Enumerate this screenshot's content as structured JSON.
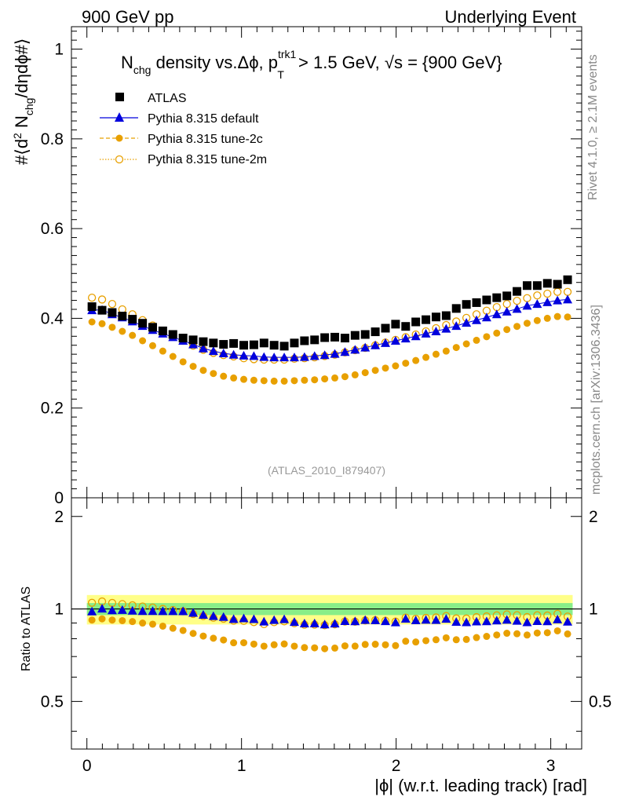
{
  "header": {
    "left": "900 GeV pp",
    "right": "Underlying Event"
  },
  "side_labels": {
    "rivet": "Rivet 4.1.0, ≥ 2.1M events",
    "mcplots": "mcplots.cern.ch [arXiv:1306.3436]"
  },
  "chart_data": {
    "type": "scatter",
    "title": "N_chg density vs. Δφ, p_T^trk1 > 1.5 GeV, √s = {900 GeV}",
    "title_parts": {
      "n": "N",
      "chg": "chg",
      "mid": " density vs.Δϕ, p",
      "sup": "trk1",
      "sub": "T",
      "rest": " > 1.5 GeV, ",
      "sqrt": "√s",
      "tail": " = {900 GeV}"
    },
    "analysis_id": "(ATLAS_2010_I879407)",
    "xlabel": "|ϕ| (w.r.t. leading track) [rad]",
    "ylabel": "#⟨d² N_chg/dηdϕ#⟩",
    "ylabel_parts": {
      "pre": "#⟨d",
      "sup": "2",
      "n": " N",
      "sub": "chg",
      "post": "/dηdϕ#⟩"
    },
    "ratio_ylabel": "Ratio to ATLAS",
    "xlim": [
      -0.1,
      3.2
    ],
    "ylim": [
      0,
      1.05
    ],
    "ratio_ylim": [
      0.35,
      2.3
    ],
    "x_ticks": [
      "0",
      "1",
      "2",
      "3"
    ],
    "y_ticks": [
      "0",
      "0.2",
      "0.4",
      "0.6",
      "0.8",
      "1"
    ],
    "ratio_ticks": [
      "0.5",
      "1",
      "2"
    ],
    "ratio_ticks_right": [
      "0.5",
      "1",
      "2"
    ],
    "legend_position": "top-left",
    "x": [
      0.0327,
      0.0982,
      0.1636,
      0.2291,
      0.2945,
      0.36,
      0.4254,
      0.4909,
      0.5563,
      0.6218,
      0.6872,
      0.7527,
      0.8181,
      0.8836,
      0.949,
      1.0145,
      1.0799,
      1.1454,
      1.2108,
      1.2763,
      1.3417,
      1.4072,
      1.4726,
      1.5381,
      1.6035,
      1.669,
      1.7344,
      1.7999,
      1.8653,
      1.9308,
      1.9962,
      2.0617,
      2.1271,
      2.1926,
      2.258,
      2.3235,
      2.3889,
      2.4544,
      2.5198,
      2.5853,
      2.6507,
      2.7162,
      2.7816,
      2.8471,
      2.9125,
      2.978,
      3.0434,
      3.1089
    ],
    "series": [
      {
        "name": "ATLAS",
        "color": "#000000",
        "marker": "square",
        "values": [
          0.426,
          0.418,
          0.413,
          0.405,
          0.398,
          0.389,
          0.38,
          0.372,
          0.364,
          0.356,
          0.352,
          0.348,
          0.345,
          0.342,
          0.344,
          0.34,
          0.341,
          0.345,
          0.34,
          0.338,
          0.345,
          0.35,
          0.352,
          0.357,
          0.358,
          0.356,
          0.362,
          0.364,
          0.37,
          0.378,
          0.387,
          0.382,
          0.392,
          0.397,
          0.403,
          0.406,
          0.422,
          0.431,
          0.435,
          0.441,
          0.446,
          0.45,
          0.46,
          0.473,
          0.473,
          0.478,
          0.476,
          0.486
        ]
      },
      {
        "name": "Pythia 8.315 default",
        "color": "#0000dd",
        "marker": "triangle",
        "values": [
          0.418,
          0.419,
          0.409,
          0.402,
          0.393,
          0.383,
          0.374,
          0.366,
          0.358,
          0.35,
          0.342,
          0.333,
          0.327,
          0.322,
          0.319,
          0.317,
          0.316,
          0.314,
          0.313,
          0.313,
          0.313,
          0.314,
          0.316,
          0.318,
          0.321,
          0.325,
          0.33,
          0.335,
          0.34,
          0.345,
          0.35,
          0.355,
          0.36,
          0.366,
          0.371,
          0.377,
          0.383,
          0.39,
          0.396,
          0.402,
          0.409,
          0.415,
          0.421,
          0.428,
          0.432,
          0.436,
          0.44,
          0.442
        ]
      },
      {
        "name": "Pythia 8.315 tune-2c",
        "color": "#e8a000",
        "marker": "circle",
        "values": [
          0.392,
          0.388,
          0.38,
          0.371,
          0.362,
          0.35,
          0.339,
          0.327,
          0.315,
          0.303,
          0.293,
          0.284,
          0.277,
          0.271,
          0.267,
          0.264,
          0.262,
          0.261,
          0.26,
          0.26,
          0.261,
          0.262,
          0.263,
          0.265,
          0.267,
          0.27,
          0.274,
          0.279,
          0.284,
          0.289,
          0.294,
          0.3,
          0.306,
          0.313,
          0.32,
          0.327,
          0.335,
          0.343,
          0.351,
          0.359,
          0.367,
          0.375,
          0.382,
          0.389,
          0.395,
          0.4,
          0.404,
          0.403
        ]
      },
      {
        "name": "Pythia 8.315 tune-2m",
        "color": "#e8a000",
        "marker": "open-circle",
        "values": [
          0.446,
          0.442,
          0.432,
          0.42,
          0.409,
          0.396,
          0.384,
          0.372,
          0.361,
          0.35,
          0.339,
          0.33,
          0.323,
          0.318,
          0.315,
          0.311,
          0.309,
          0.308,
          0.308,
          0.308,
          0.31,
          0.311,
          0.313,
          0.316,
          0.319,
          0.324,
          0.329,
          0.334,
          0.34,
          0.346,
          0.352,
          0.358,
          0.364,
          0.371,
          0.378,
          0.385,
          0.393,
          0.401,
          0.409,
          0.417,
          0.425,
          0.432,
          0.439,
          0.445,
          0.451,
          0.455,
          0.459,
          0.459
        ]
      }
    ],
    "ratio_band": {
      "inner": [
        0.955,
        1.045
      ],
      "outer": [
        0.89,
        1.11
      ]
    }
  }
}
